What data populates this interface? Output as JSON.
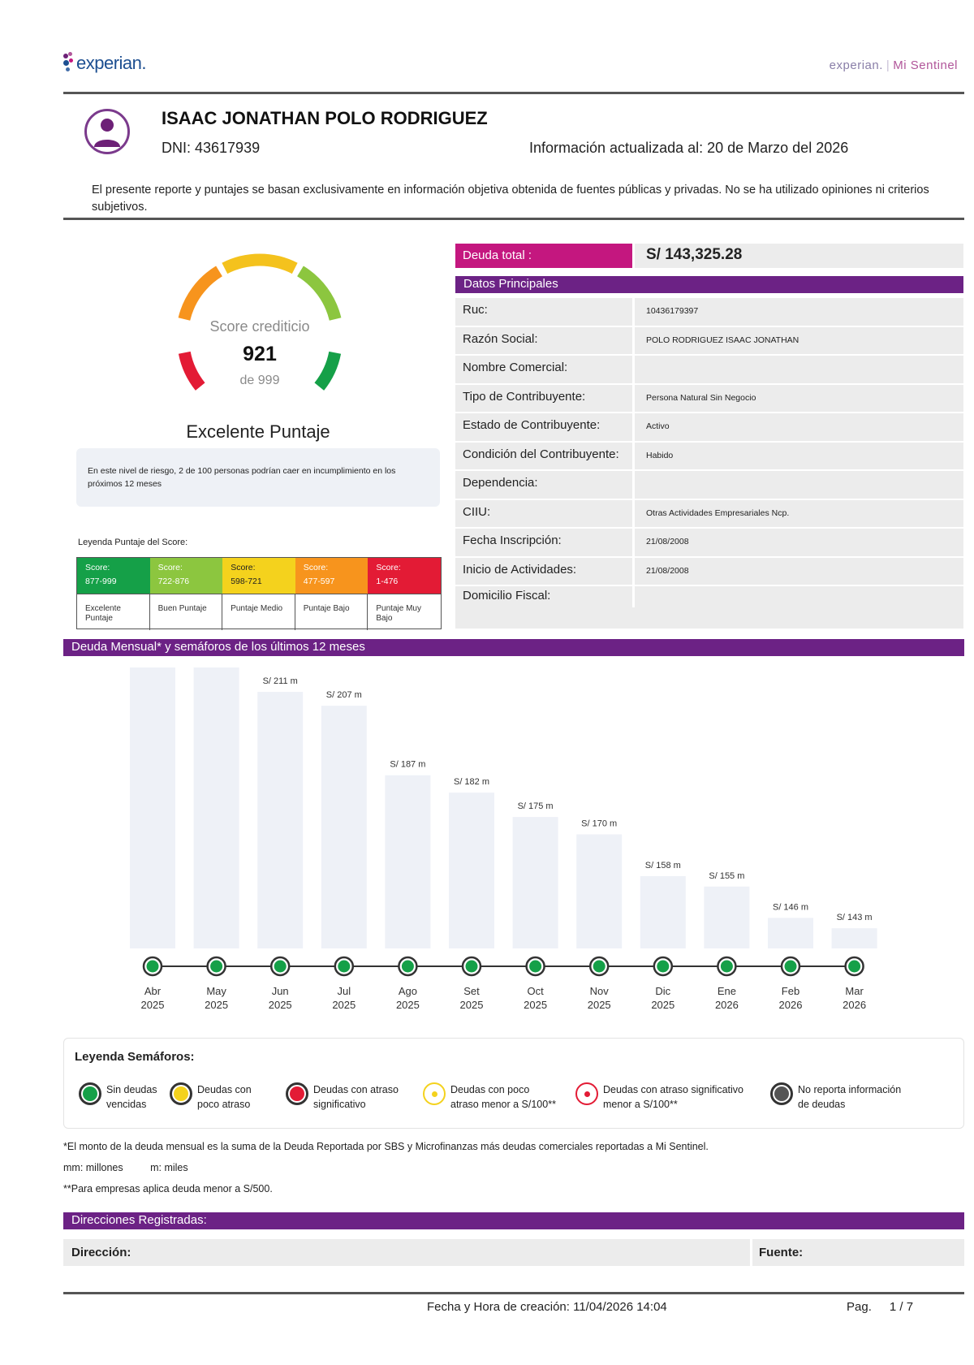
{
  "header": {
    "logo_text": "experian.",
    "brand_right_a": "experian.",
    "brand_right_sep": "|",
    "brand_right_b": "Mi Sentinel"
  },
  "person": {
    "name": "ISAAC JONATHAN POLO RODRIGUEZ",
    "dni": "DNI: 43617939",
    "updated": "Información actualizada al: 20 de Marzo del 2026",
    "disclaimer": "El presente reporte y puntajes se basan exclusivamente en información objetiva obtenida de fuentes públicas y privadas. No se ha utilizado opiniones ni criterios subjetivos."
  },
  "score": {
    "title": "Score crediticio",
    "value": "921",
    "of": "de 999",
    "label": "Excelente Puntaje",
    "risk_text": "En este nivel de riesgo, 2 de 100 personas podrían caer en incumplimiento en los próximos 12 meses"
  },
  "legend_score": {
    "title": "Leyenda Puntaje del Score:",
    "items": [
      {
        "score": "Score:",
        "range": "877-999",
        "label": "Excelente Puntaje",
        "color": "#15a048"
      },
      {
        "score": "Score:",
        "range": "722-876",
        "label": "Buen Puntaje",
        "color": "#8cc63f"
      },
      {
        "score": "Score:",
        "range": "598-721",
        "label": "Puntaje Medio",
        "color": "#f4d21d"
      },
      {
        "score": "Score:",
        "range": "477-597",
        "label": "Puntaje Bajo",
        "color": "#f7941d"
      },
      {
        "score": "Score:",
        "range": "1-476",
        "label": "Puntaje Muy Bajo",
        "color": "#e31b35"
      }
    ]
  },
  "debt": {
    "label": "Deuda total :",
    "value": "S/ 143,325.28"
  },
  "datos": {
    "title": "Datos Principales",
    "rows": [
      {
        "k": "Ruc:",
        "v": "10436179397"
      },
      {
        "k": "Razón Social:",
        "v": "POLO RODRIGUEZ ISAAC JONATHAN"
      },
      {
        "k": "Nombre Comercial:",
        "v": ""
      },
      {
        "k": "Tipo de Contribuyente:",
        "v": "Persona Natural Sin Negocio"
      },
      {
        "k": "Estado de Contribuyente:",
        "v": "Activo"
      },
      {
        "k": "Condición del Contribuyente:",
        "v": "Habido"
      },
      {
        "k": "Dependencia:",
        "v": ""
      },
      {
        "k": "CIIU:",
        "v": "Otras Actividades Empresariales Ncp."
      },
      {
        "k": "Fecha Inscripción:",
        "v": "21/08/2008"
      },
      {
        "k": "Inicio de Actividades:",
        "v": "21/08/2008"
      },
      {
        "k": "Domicilio Fiscal:",
        "v": ""
      }
    ]
  },
  "chart_section_title": "Deuda Mensual* y semáforos de los últimos 12 meses",
  "chart_data": {
    "type": "bar",
    "categories": [
      "Abr 2025",
      "May 2025",
      "Jun 2025",
      "Jul 2025",
      "Ago 2025",
      "Set 2025",
      "Oct 2025",
      "Nov 2025",
      "Dic 2025",
      "Ene 2026",
      "Feb 2026",
      "Mar 2026"
    ],
    "months": [
      "Abr",
      "May",
      "Jun",
      "Jul",
      "Ago",
      "Set",
      "Oct",
      "Nov",
      "Dic",
      "Ene",
      "Feb",
      "Mar"
    ],
    "years": [
      "2025",
      "2025",
      "2025",
      "2025",
      "2025",
      "2025",
      "2025",
      "2025",
      "2025",
      "2026",
      "2026",
      "2026"
    ],
    "values": [
      218,
      218,
      211,
      207,
      187,
      182,
      175,
      170,
      158,
      155,
      146,
      143
    ],
    "labels": [
      "",
      "",
      "S/ 211 m",
      "S/ 207 m",
      "S/ 187 m",
      "S/ 182 m",
      "S/ 175 m",
      "S/ 170 m",
      "S/ 158 m",
      "S/ 155 m",
      "S/ 146 m",
      "S/ 143 m"
    ],
    "status": [
      "green",
      "green",
      "green",
      "green",
      "green",
      "green",
      "green",
      "green",
      "green",
      "green",
      "green",
      "green"
    ],
    "ylim": [
      140,
      218
    ],
    "bar_color": "#eef1f7",
    "status_color": "#15a048"
  },
  "semaforos": {
    "title": "Leyenda Semáforos:",
    "items": [
      {
        "line1": "Sin deudas",
        "line2": "vencidas",
        "color": "#15a048",
        "style": "full"
      },
      {
        "line1": "Deudas con",
        "line2": "poco atraso",
        "color": "#f4d21d",
        "style": "full"
      },
      {
        "line1": "Deudas con atraso",
        "line2": "significativo",
        "color": "#e31b35",
        "style": "full"
      },
      {
        "line1": "Deudas con poco",
        "line2": "atraso menor a S/100**",
        "color": "#f4d21d",
        "style": "ring"
      },
      {
        "line1": "Deudas con atraso significativo",
        "line2": "menor a S/100**",
        "color": "#e31b35",
        "style": "ring"
      },
      {
        "line1": "No reporta información",
        "line2": "de deudas",
        "color": "#555555",
        "style": "full"
      }
    ]
  },
  "notes": {
    "n1": "*El monto de la deuda mensual es la suma de la Deuda Reportada por SBS y Microfinanzas más deudas comerciales reportadas a Mi Sentinel.",
    "n2a": "mm: millones",
    "n2b": "m: miles",
    "n3": "**Para empresas aplica deuda menor a S/500."
  },
  "direcciones": {
    "title": "Direcciones Registradas:",
    "col1": "Dirección:",
    "col2": "Fuente:"
  },
  "footer": {
    "date": "Fecha y Hora de creación: 11/04/2026 14:04",
    "page_label": "Pag.",
    "page_value": "1 / 7"
  }
}
